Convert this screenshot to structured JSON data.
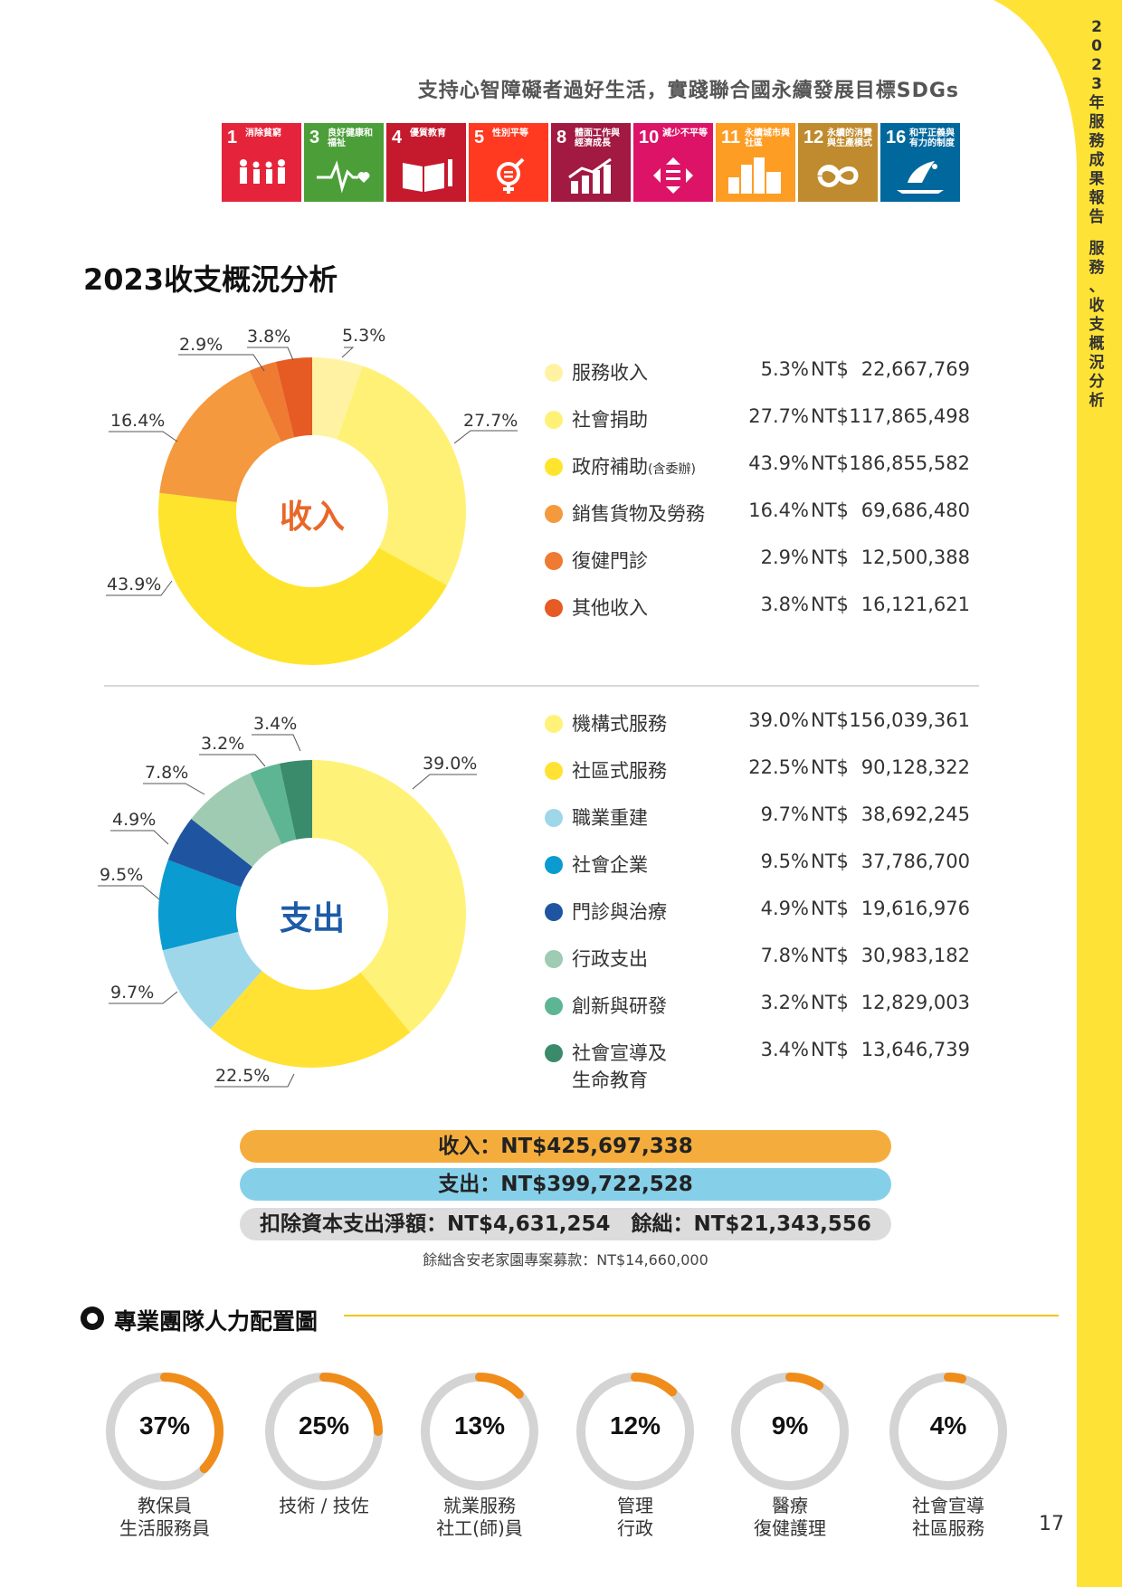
{
  "sidebar": {
    "vertical_title": "2023年服務成果報告　服務、收支概況分析",
    "accent_color": "#ffe236"
  },
  "header": {
    "subtitle": "支持心智障礙者過好生活，實踐聯合國永續發展目標SDGs"
  },
  "sdgs": [
    {
      "num": "1",
      "label": "消除貧窮",
      "color": "#e5243b",
      "icon": "family-icon"
    },
    {
      "num": "3",
      "label": "良好健康和福祉",
      "color": "#4c9f38",
      "icon": "heartbeat-icon"
    },
    {
      "num": "4",
      "label": "優質教育",
      "color": "#c5192d",
      "icon": "book-pencil-icon"
    },
    {
      "num": "5",
      "label": "性別平等",
      "color": "#ff3a21",
      "icon": "gender-equality-icon"
    },
    {
      "num": "8",
      "label": "體面工作與經濟成長",
      "color": "#a21942",
      "icon": "growth-chart-icon"
    },
    {
      "num": "10",
      "label": "減少不平等",
      "color": "#dd1367",
      "icon": "equality-arrows-icon"
    },
    {
      "num": "11",
      "label": "永續城市與社區",
      "color": "#fd9d24",
      "icon": "city-icon"
    },
    {
      "num": "12",
      "label": "永續的消費與生產模式",
      "color": "#bf8b2e",
      "icon": "infinity-icon"
    },
    {
      "num": "16",
      "label": "和平正義與有力的制度",
      "color": "#00689d",
      "icon": "dove-icon"
    }
  ],
  "title": "2023收支概況分析",
  "income": {
    "center_label": "收入",
    "center_color": "#e8682a",
    "items": [
      {
        "name": "服務收入",
        "pct": "5.3%",
        "currency": "NT$",
        "amount": "22,667,769",
        "color": "#fff3a3"
      },
      {
        "name": "社會捐助",
        "pct": "27.7%",
        "currency": "NT$",
        "amount": "117,865,498",
        "color": "#fff176"
      },
      {
        "name": "政府補助",
        "name_small": "(含委辦)",
        "pct": "43.9%",
        "currency": "NT$",
        "amount": "186,855,582",
        "color": "#ffe42e"
      },
      {
        "name": "銷售貨物及勞務",
        "pct": "16.4%",
        "currency": "NT$",
        "amount": "69,686,480",
        "color": "#f4993d"
      },
      {
        "name": "復健門診",
        "pct": "2.9%",
        "currency": "NT$",
        "amount": "12,500,388",
        "color": "#ef7a31"
      },
      {
        "name": "其他收入",
        "pct": "3.8%",
        "currency": "NT$",
        "amount": "16,121,621",
        "color": "#e65a24"
      }
    ]
  },
  "expense": {
    "center_label": "支出",
    "center_color": "#1d5ba6",
    "items": [
      {
        "name": "機構式服務",
        "pct": "39.0%",
        "currency": "NT$",
        "amount": "156,039,361",
        "color": "#fff278"
      },
      {
        "name": "社區式服務",
        "pct": "22.5%",
        "currency": "NT$",
        "amount": "90,128,322",
        "color": "#ffe234"
      },
      {
        "name": "職業重建",
        "pct": "9.7%",
        "currency": "NT$",
        "amount": "38,692,245",
        "color": "#9fd7ea"
      },
      {
        "name": "社會企業",
        "pct": "9.5%",
        "currency": "NT$",
        "amount": "37,786,700",
        "color": "#0a9bd0"
      },
      {
        "name": "門診與治療",
        "pct": "4.9%",
        "currency": "NT$",
        "amount": "19,616,976",
        "color": "#1f55a0"
      },
      {
        "name": "行政支出",
        "pct": "7.8%",
        "currency": "NT$",
        "amount": "30,983,182",
        "color": "#9fcbb2"
      },
      {
        "name": "創新與研發",
        "pct": "3.2%",
        "currency": "NT$",
        "amount": "12,829,003",
        "color": "#5eb594"
      },
      {
        "name": "社會宣導及",
        "name_line2": "生命教育",
        "pct": "3.4%",
        "currency": "NT$",
        "amount": "13,646,739",
        "color": "#3a8a6c"
      }
    ]
  },
  "totals": {
    "income": "收入：NT$425,697,338",
    "expense": "支出：NT$399,722,528",
    "net": "扣除資本支出淨額：NT$4,631,254　餘絀：NT$21,343,556",
    "note": "餘絀含安老家園專案募款：NT$14,660,000",
    "income_color": "#f4ad3d",
    "expense_color": "#86cfe9",
    "net_color": "#dcdcdc"
  },
  "team": {
    "title": "專業團隊人力配置圖",
    "accent_color": "#f08c1a",
    "items": [
      {
        "pct_label": "37%",
        "value": 0.37,
        "line1": "教保員",
        "line2": "生活服務員"
      },
      {
        "pct_label": "25%",
        "value": 0.25,
        "line1": "技術 / 技佐",
        "line2": ""
      },
      {
        "pct_label": "13%",
        "value": 0.13,
        "line1": "就業服務",
        "line2": "社工(師)員"
      },
      {
        "pct_label": "12%",
        "value": 0.12,
        "line1": "管理",
        "line2": "行政"
      },
      {
        "pct_label": "9%",
        "value": 0.09,
        "line1": "醫療",
        "line2": "復健護理"
      },
      {
        "pct_label": "4%",
        "value": 0.04,
        "line1": "社會宣導",
        "line2": "社區服務"
      }
    ]
  },
  "page_number": "17"
}
